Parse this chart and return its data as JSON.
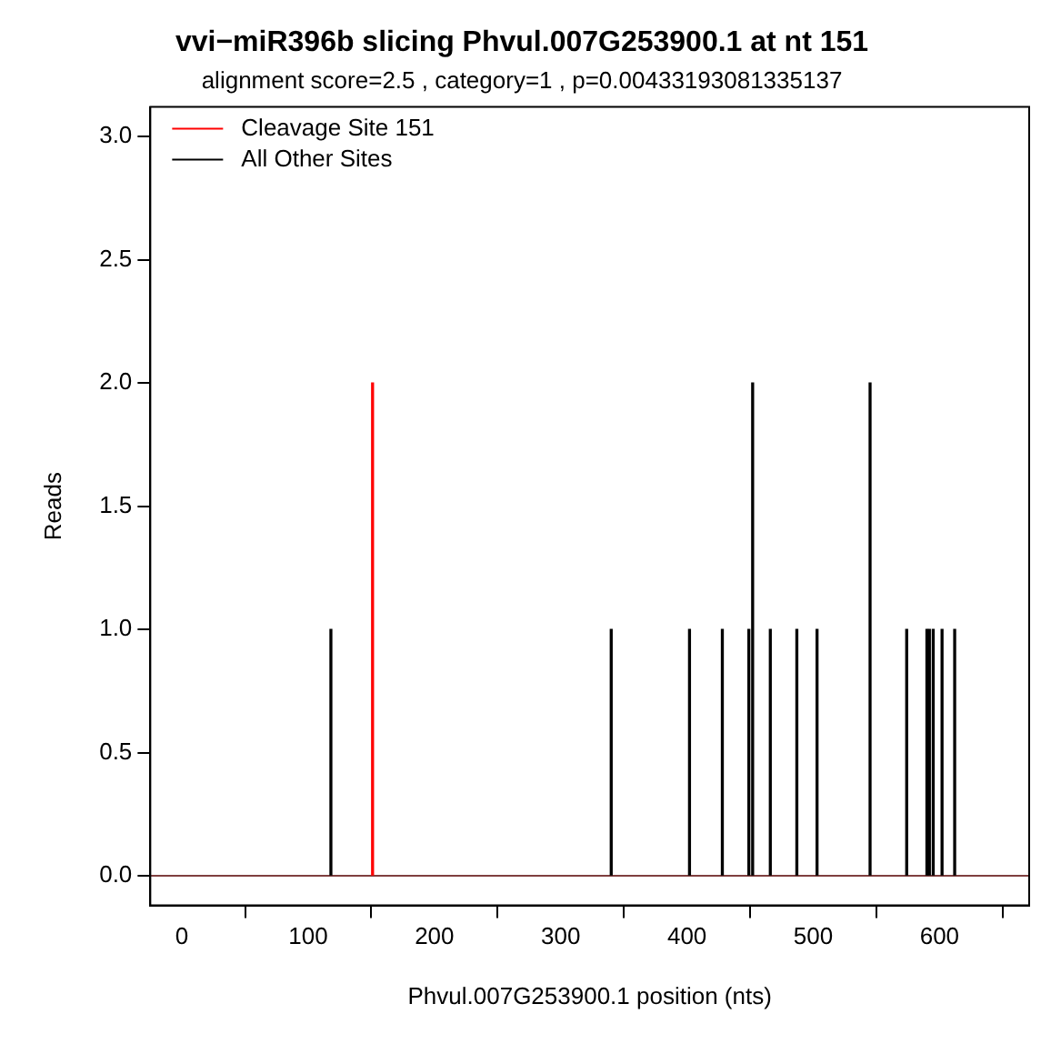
{
  "chart_data": {
    "type": "bar",
    "title": "vvi−miR396b slicing Phvul.007G253900.1 at nt 151",
    "subtitle": "alignment score=2.5 , category=1 , p=0.00433193081335137",
    "xlabel": "Phvul.007G253900.1 position (nts)",
    "ylabel": "Reads",
    "series": [
      {
        "name": "Cleavage Site 151",
        "color": "#ff0000",
        "x": [
          151
        ],
        "values": [
          2
        ]
      },
      {
        "name": "All Other Sites",
        "color": "#000000",
        "x": [
          118,
          340,
          402,
          428,
          449,
          452,
          466,
          487,
          503,
          545,
          574,
          590,
          592,
          595,
          602,
          612
        ],
        "values": [
          1,
          1,
          1,
          1,
          1,
          2,
          1,
          1,
          1,
          2,
          1,
          1,
          1,
          1,
          1,
          1
        ]
      }
    ],
    "xlim": [
      -25,
      671
    ],
    "xticks": [
      0,
      100,
      200,
      300,
      400,
      500,
      600
    ],
    "ylim": [
      -0.12,
      3.12
    ],
    "yticks": [
      {
        "value": 0,
        "label": "0.0"
      },
      {
        "value": 0.5,
        "label": "0.5"
      },
      {
        "value": 1,
        "label": "1.0"
      },
      {
        "value": 1.5,
        "label": "1.5"
      },
      {
        "value": 2,
        "label": "2.0"
      },
      {
        "value": 2.5,
        "label": "2.5"
      },
      {
        "value": 3,
        "label": "3.0"
      }
    ],
    "ref_lines": [
      {
        "axis": "y",
        "value": 0,
        "color": "#7f3f3f"
      }
    ],
    "grid": false,
    "legend": "top left"
  }
}
